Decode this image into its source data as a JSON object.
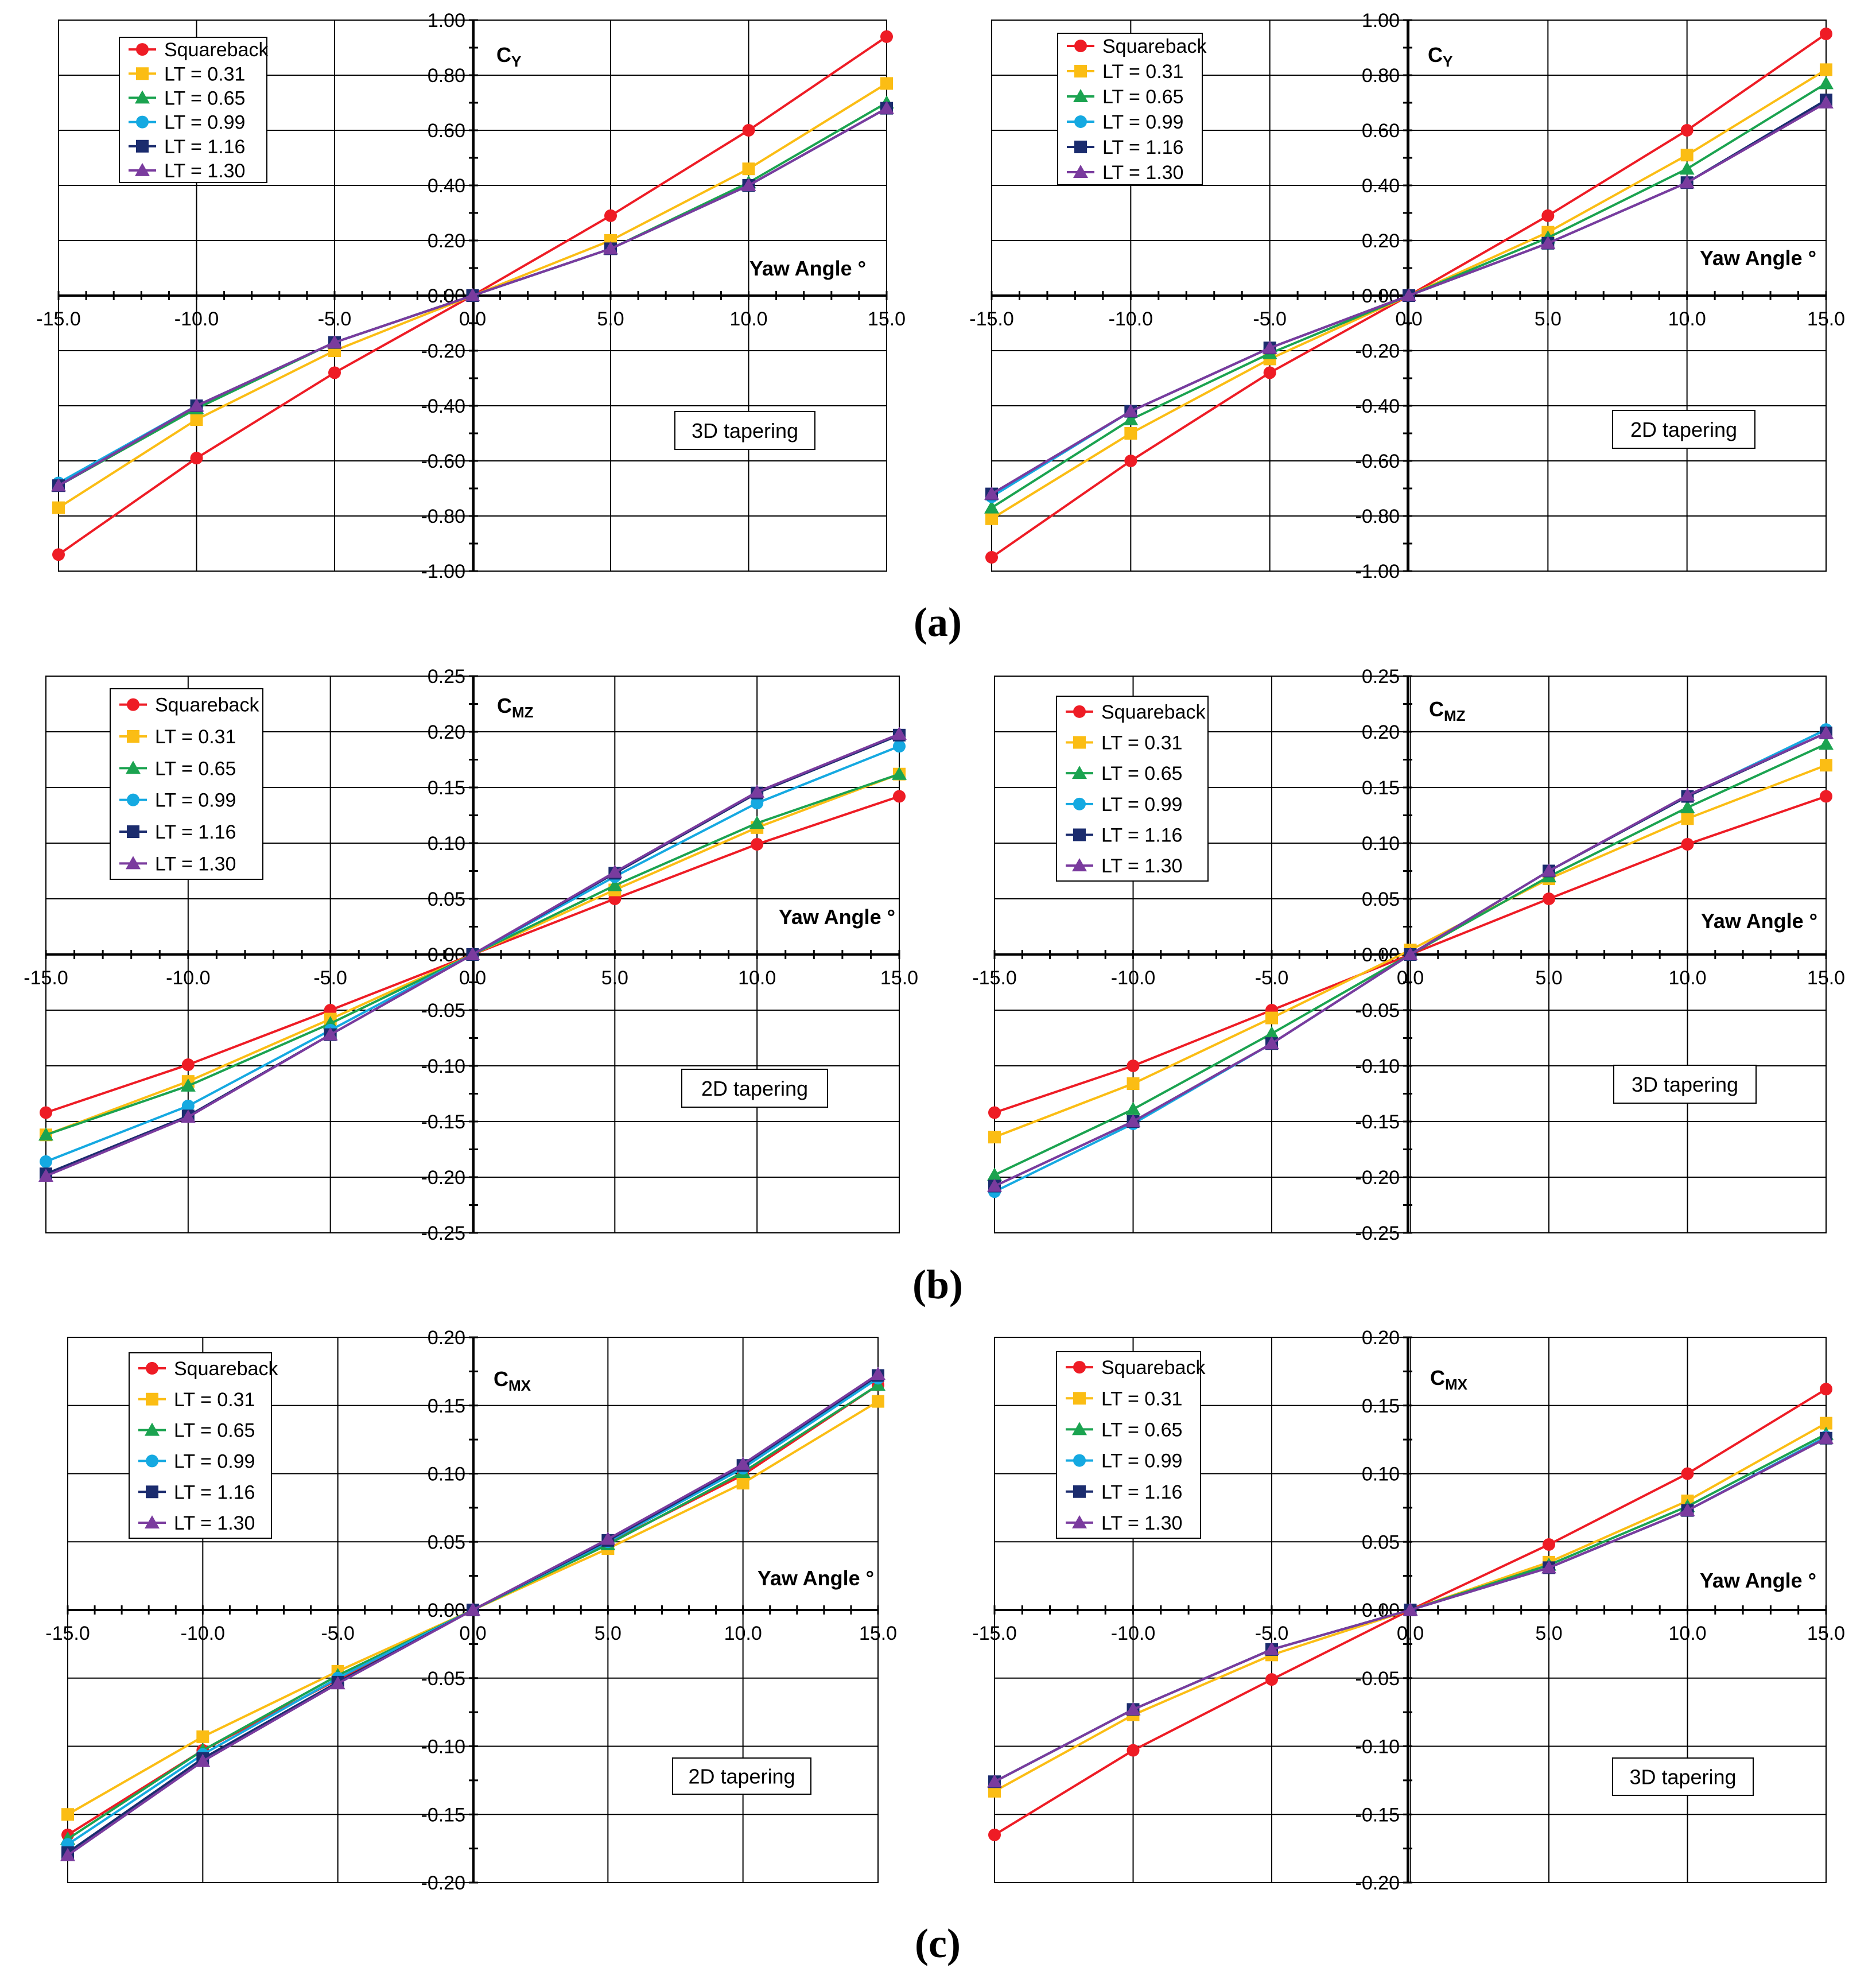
{
  "legend_labels": [
    "Squareback",
    "LT = 0.31",
    "LT = 0.65",
    "LT = 0.99",
    "LT = 1.16",
    "LT = 1.30"
  ],
  "series_colors": [
    "#ee1c25",
    "#fbbd14",
    "#1ba350",
    "#15a9e1",
    "#1b2c6e",
    "#7a3b9e"
  ],
  "series_markers": [
    "circle",
    "square",
    "triangle",
    "circle",
    "square",
    "triangle"
  ],
  "panel_labels": [
    "(a)",
    "(b)",
    "(c)"
  ],
  "chart_data": [
    {
      "type": "line",
      "title": "C",
      "subscript": "Y",
      "xlabel": "Yaw Angle °",
      "note": "3D tapering",
      "x": [
        -15,
        -10,
        -5,
        0,
        5,
        10,
        15
      ],
      "xlim": [
        -15,
        15
      ],
      "ylim": [
        -1,
        1
      ],
      "xticks": [
        "-15.0",
        "-10.0",
        "-5.0",
        "0.0",
        "5.0",
        "10.0",
        "15.0"
      ],
      "yticks": [
        "-1.00",
        "-0.80",
        "-0.60",
        "-0.40",
        "-0.20",
        "0.00",
        "0.20",
        "0.40",
        "0.60",
        "0.80",
        "1.00"
      ],
      "series": [
        {
          "name": "Squareback",
          "values": [
            -0.94,
            -0.59,
            -0.28,
            0.0,
            0.29,
            0.6,
            0.94
          ]
        },
        {
          "name": "LT = 0.31",
          "values": [
            -0.77,
            -0.45,
            -0.2,
            0.0,
            0.2,
            0.46,
            0.77
          ]
        },
        {
          "name": "LT = 0.65",
          "values": [
            -0.69,
            -0.41,
            -0.17,
            0.0,
            0.17,
            0.41,
            0.7
          ]
        },
        {
          "name": "LT = 0.99",
          "values": [
            -0.68,
            -0.4,
            -0.17,
            0.0,
            0.17,
            0.4,
            0.68
          ]
        },
        {
          "name": "LT = 1.16",
          "values": [
            -0.69,
            -0.4,
            -0.17,
            0.0,
            0.17,
            0.4,
            0.68
          ]
        },
        {
          "name": "LT = 1.30",
          "values": [
            -0.69,
            -0.4,
            -0.17,
            0.0,
            0.17,
            0.4,
            0.68
          ]
        }
      ]
    },
    {
      "type": "line",
      "title": "C",
      "subscript": "Y",
      "xlabel": "Yaw Angle °",
      "note": "2D tapering",
      "x": [
        -15,
        -10,
        -5,
        0,
        5,
        10,
        15
      ],
      "xlim": [
        -15,
        15
      ],
      "ylim": [
        -1,
        1
      ],
      "xticks": [
        "-15.0",
        "-10.0",
        "-5.0",
        "0.0",
        "5.0",
        "10.0",
        "15.0"
      ],
      "yticks": [
        "-1.00",
        "-0.80",
        "-0.60",
        "-0.40",
        "-0.20",
        "0.00",
        "0.20",
        "0.40",
        "0.60",
        "0.80",
        "1.00"
      ],
      "series": [
        {
          "name": "Squareback",
          "values": [
            -0.95,
            -0.6,
            -0.28,
            0.0,
            0.29,
            0.6,
            0.95
          ]
        },
        {
          "name": "LT = 0.31",
          "values": [
            -0.81,
            -0.5,
            -0.23,
            0.0,
            0.23,
            0.51,
            0.82
          ]
        },
        {
          "name": "LT = 0.65",
          "values": [
            -0.77,
            -0.45,
            -0.21,
            0.0,
            0.21,
            0.46,
            0.77
          ]
        },
        {
          "name": "LT = 0.99",
          "values": [
            -0.73,
            -0.42,
            -0.19,
            0.0,
            0.19,
            0.41,
            0.71
          ]
        },
        {
          "name": "LT = 1.16",
          "values": [
            -0.72,
            -0.42,
            -0.19,
            0.0,
            0.19,
            0.41,
            0.71
          ]
        },
        {
          "name": "LT = 1.30",
          "values": [
            -0.72,
            -0.42,
            -0.19,
            0.0,
            0.19,
            0.41,
            0.7
          ]
        }
      ]
    },
    {
      "type": "line",
      "title": "C",
      "subscript": "MZ",
      "xlabel": "Yaw Angle °",
      "note": "2D tapering",
      "x": [
        -15,
        -10,
        -5,
        0,
        5,
        10,
        15
      ],
      "xlim": [
        -15,
        15
      ],
      "ylim": [
        -0.25,
        0.25
      ],
      "xticks": [
        "-15.0",
        "-10.0",
        "-5.0",
        "0.0",
        "5.0",
        "10.0",
        "15.0"
      ],
      "yticks": [
        "-0.25",
        "-0.20",
        "-0.15",
        "-0.10",
        "-0.05",
        "0.00",
        "0.05",
        "0.10",
        "0.15",
        "0.20",
        "0.25"
      ],
      "series": [
        {
          "name": "Squareback",
          "values": [
            -0.142,
            -0.099,
            -0.05,
            0.0,
            0.05,
            0.099,
            0.142
          ]
        },
        {
          "name": "LT = 0.31",
          "values": [
            -0.162,
            -0.114,
            -0.058,
            0.0,
            0.058,
            0.114,
            0.162
          ]
        },
        {
          "name": "LT = 0.65",
          "values": [
            -0.162,
            -0.118,
            -0.062,
            0.0,
            0.062,
            0.118,
            0.162
          ]
        },
        {
          "name": "LT = 0.99",
          "values": [
            -0.186,
            -0.136,
            -0.068,
            0.0,
            0.07,
            0.136,
            0.187
          ]
        },
        {
          "name": "LT = 1.16",
          "values": [
            -0.197,
            -0.145,
            -0.072,
            0.0,
            0.073,
            0.145,
            0.197
          ]
        },
        {
          "name": "LT = 1.30",
          "values": [
            -0.199,
            -0.146,
            -0.072,
            0.0,
            0.074,
            0.146,
            0.198
          ]
        }
      ]
    },
    {
      "type": "line",
      "title": "C",
      "subscript": "MZ",
      "xlabel": "Yaw Angle °",
      "note": "3D tapering",
      "x": [
        -15,
        -10,
        -5,
        0,
        5,
        10,
        15
      ],
      "xlim": [
        -15,
        15
      ],
      "ylim": [
        -0.25,
        0.25
      ],
      "xticks": [
        "-15.0",
        "-10.0",
        "-5.0",
        "0.0",
        "5.0",
        "10.0",
        "15.0"
      ],
      "yticks": [
        "-0.25",
        "-0.20",
        "-0.15",
        "-0.10",
        "-0.05",
        "0.00",
        "0.05",
        "0.10",
        "0.15",
        "0.20",
        "0.25"
      ],
      "series": [
        {
          "name": "Squareback",
          "values": [
            -0.142,
            -0.1,
            -0.05,
            0.0,
            0.05,
            0.099,
            0.142
          ]
        },
        {
          "name": "LT = 0.31",
          "values": [
            -0.164,
            -0.116,
            -0.057,
            0.004,
            0.068,
            0.122,
            0.17
          ]
        },
        {
          "name": "LT = 0.65",
          "values": [
            -0.198,
            -0.139,
            -0.071,
            0.0,
            0.07,
            0.132,
            0.189
          ]
        },
        {
          "name": "LT = 0.99",
          "values": [
            -0.213,
            -0.152,
            -0.08,
            0.0,
            0.075,
            0.142,
            0.202
          ]
        },
        {
          "name": "LT = 1.16",
          "values": [
            -0.208,
            -0.15,
            -0.08,
            0.0,
            0.075,
            0.142,
            0.199
          ]
        },
        {
          "name": "LT = 1.30",
          "values": [
            -0.208,
            -0.15,
            -0.08,
            0.0,
            0.075,
            0.143,
            0.199
          ]
        }
      ]
    },
    {
      "type": "line",
      "title": "C",
      "subscript": "MX",
      "xlabel": "Yaw Angle °",
      "note": "2D tapering",
      "x": [
        -15,
        -10,
        -5,
        0,
        5,
        10,
        15
      ],
      "xlim": [
        -15,
        15
      ],
      "ylim": [
        -0.2,
        0.2
      ],
      "xticks": [
        "-15.0",
        "-10.0",
        "-5.0",
        "0.0",
        "5.0",
        "10.0",
        "15.0"
      ],
      "yticks": [
        "-0.20",
        "-0.15",
        "-0.10",
        "-0.05",
        "0.00",
        "0.05",
        "0.10",
        "0.15",
        "0.20"
      ],
      "series": [
        {
          "name": "Squareback",
          "values": [
            -0.165,
            -0.103,
            -0.051,
            0.0,
            0.049,
            0.099,
            0.165
          ]
        },
        {
          "name": "LT = 0.31",
          "values": [
            -0.15,
            -0.093,
            -0.045,
            0.0,
            0.045,
            0.093,
            0.153
          ]
        },
        {
          "name": "LT = 0.65",
          "values": [
            -0.168,
            -0.103,
            -0.048,
            0.0,
            0.048,
            0.101,
            0.165
          ]
        },
        {
          "name": "LT = 0.99",
          "values": [
            -0.172,
            -0.106,
            -0.05,
            0.0,
            0.05,
            0.104,
            0.17
          ]
        },
        {
          "name": "LT = 1.16",
          "values": [
            -0.178,
            -0.109,
            -0.053,
            0.0,
            0.051,
            0.106,
            0.172
          ]
        },
        {
          "name": "LT = 1.30",
          "values": [
            -0.18,
            -0.111,
            -0.054,
            0.0,
            0.052,
            0.107,
            0.173
          ]
        }
      ]
    },
    {
      "type": "line",
      "title": "C",
      "subscript": "MX",
      "xlabel": "Yaw Angle °",
      "note": "3D tapering",
      "x": [
        -15,
        -10,
        -5,
        0,
        5,
        10,
        15
      ],
      "xlim": [
        -15,
        15
      ],
      "ylim": [
        -0.2,
        0.2
      ],
      "xticks": [
        "-15.0",
        "-10.0",
        "-5.0",
        "0.0",
        "5.0",
        "10.0",
        "15.0"
      ],
      "yticks": [
        "-0.20",
        "-0.15",
        "-0.10",
        "-0.05",
        "0.00",
        "0.05",
        "0.10",
        "0.15",
        "0.20"
      ],
      "series": [
        {
          "name": "Squareback",
          "values": [
            -0.165,
            -0.103,
            -0.051,
            0.0,
            0.048,
            0.1,
            0.162
          ]
        },
        {
          "name": "LT = 0.31",
          "values": [
            -0.133,
            -0.077,
            -0.033,
            0.0,
            0.035,
            0.08,
            0.137
          ]
        },
        {
          "name": "LT = 0.65",
          "values": [
            -0.126,
            -0.073,
            -0.029,
            0.0,
            0.033,
            0.076,
            0.129
          ]
        },
        {
          "name": "LT = 0.99",
          "values": [
            -0.126,
            -0.073,
            -0.029,
            0.0,
            0.031,
            0.073,
            0.127
          ]
        },
        {
          "name": "LT = 1.16",
          "values": [
            -0.126,
            -0.073,
            -0.029,
            0.0,
            0.031,
            0.073,
            0.126
          ]
        },
        {
          "name": "LT = 1.30",
          "values": [
            -0.126,
            -0.073,
            -0.029,
            0.0,
            0.031,
            0.073,
            0.126
          ]
        }
      ]
    }
  ]
}
